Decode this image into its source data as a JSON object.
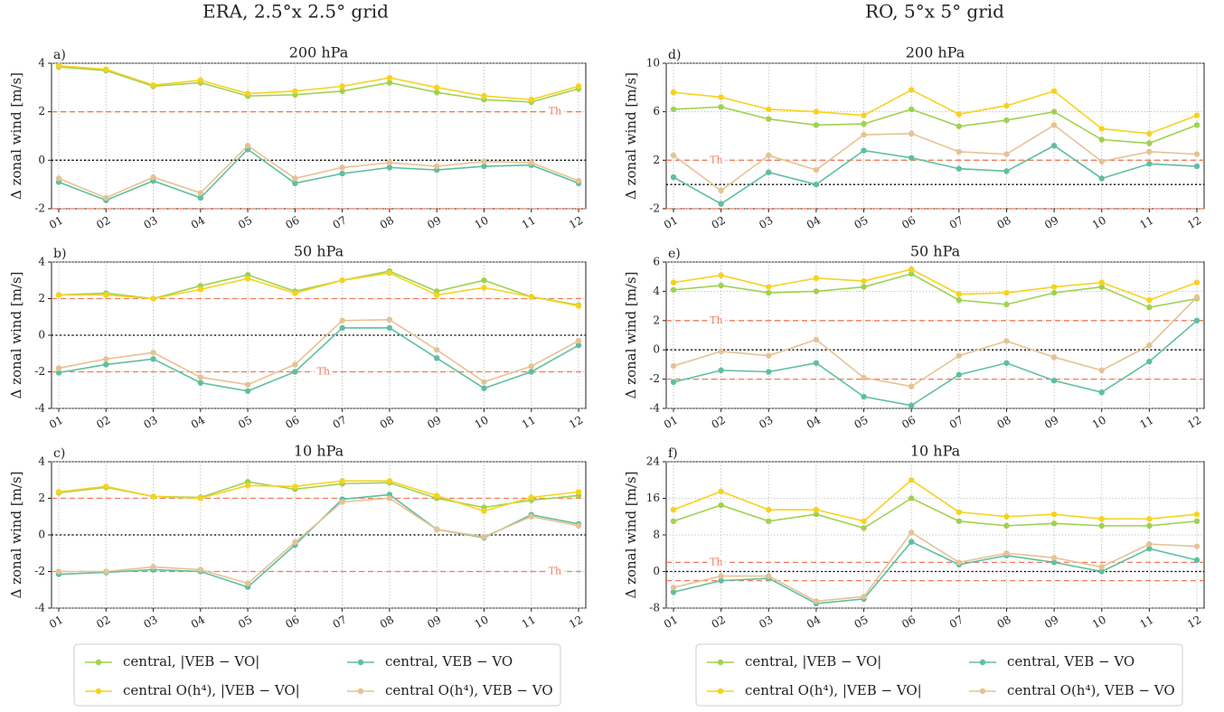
{
  "column_titles": [
    "ERA, 2.5°x 2.5° grid",
    "RO, 5°x 5° grid"
  ],
  "chart_data": [
    {
      "type": "line",
      "panel": "a)",
      "title": "200 hPa",
      "ylabel": "Δ zonal wind [m/s]",
      "categories": [
        "01",
        "02",
        "03",
        "04",
        "05",
        "06",
        "07",
        "08",
        "09",
        "10",
        "11",
        "12"
      ],
      "series": [
        {
          "name": "central, |VEB − VO|",
          "color": "#9fd24f",
          "values": [
            3.85,
            3.7,
            3.05,
            3.2,
            2.65,
            2.7,
            2.85,
            3.2,
            2.8,
            2.5,
            2.4,
            2.95
          ]
        },
        {
          "name": "central O(h⁴), |VEB − VO|",
          "color": "#f7d21e",
          "values": [
            3.9,
            3.75,
            3.1,
            3.3,
            2.75,
            2.85,
            3.05,
            3.4,
            3.0,
            2.65,
            2.5,
            3.05
          ]
        },
        {
          "name": "central, VEB − VO",
          "color": "#5fbf9f",
          "values": [
            -0.9,
            -1.65,
            -0.85,
            -1.55,
            0.45,
            -0.95,
            -0.55,
            -0.3,
            -0.4,
            -0.25,
            -0.2,
            -0.95
          ]
        },
        {
          "name": "central O(h⁴), VEB − VO",
          "color": "#e6c293",
          "values": [
            -0.75,
            -1.55,
            -0.7,
            -1.35,
            0.6,
            -0.75,
            -0.3,
            -0.1,
            -0.25,
            -0.05,
            -0.1,
            -0.85
          ]
        }
      ],
      "ylim": [
        -2,
        4
      ],
      "yticks": [
        -2,
        0,
        2,
        4
      ],
      "threshold": [
        2,
        -2
      ],
      "threshold_label": "Th",
      "grid": true
    },
    {
      "type": "line",
      "panel": "b)",
      "title": "50 hPa",
      "ylabel": "Δ zonal wind [m/s]",
      "categories": [
        "01",
        "02",
        "03",
        "04",
        "05",
        "06",
        "07",
        "08",
        "09",
        "10",
        "11",
        "12"
      ],
      "series": [
        {
          "color": "#9fd24f",
          "values": [
            2.2,
            2.3,
            2.0,
            2.7,
            3.3,
            2.4,
            3.0,
            3.5,
            2.4,
            3.0,
            2.1,
            1.65
          ]
        },
        {
          "color": "#f7d21e",
          "values": [
            2.2,
            2.2,
            2.0,
            2.5,
            3.1,
            2.3,
            3.0,
            3.4,
            2.2,
            2.6,
            2.1,
            1.6
          ]
        },
        {
          "color": "#5fbf9f",
          "values": [
            -2.05,
            -1.6,
            -1.3,
            -2.6,
            -3.05,
            -2.0,
            0.4,
            0.4,
            -1.25,
            -2.9,
            -2.0,
            -0.55
          ]
        },
        {
          "color": "#e6c293",
          "values": [
            -1.8,
            -1.3,
            -0.95,
            -2.3,
            -2.7,
            -1.6,
            0.8,
            0.85,
            -0.8,
            -2.55,
            -1.7,
            -0.3
          ]
        }
      ],
      "ylim": [
        -4,
        4
      ],
      "yticks": [
        -4,
        -2,
        0,
        2,
        4
      ],
      "threshold": [
        2,
        -2
      ],
      "threshold_label": "Th",
      "grid": true
    },
    {
      "type": "line",
      "panel": "c)",
      "title": "10 hPa",
      "ylabel": "Δ zonal wind [m/s]",
      "categories": [
        "01",
        "02",
        "03",
        "04",
        "05",
        "06",
        "07",
        "08",
        "09",
        "10",
        "11",
        "12"
      ],
      "series": [
        {
          "color": "#9fd24f",
          "values": [
            2.3,
            2.6,
            2.1,
            2.05,
            2.9,
            2.5,
            2.8,
            2.85,
            2.0,
            1.5,
            1.9,
            2.15
          ]
        },
        {
          "color": "#f7d21e",
          "values": [
            2.35,
            2.65,
            2.1,
            2.0,
            2.7,
            2.65,
            2.95,
            2.95,
            2.15,
            1.3,
            2.05,
            2.35
          ]
        },
        {
          "color": "#5fbf9f",
          "values": [
            -2.15,
            -2.05,
            -1.9,
            -2.0,
            -2.85,
            -0.55,
            1.95,
            2.2,
            0.3,
            -0.15,
            1.1,
            0.6
          ]
        },
        {
          "color": "#e6c293",
          "values": [
            -2.0,
            -2.0,
            -1.75,
            -1.9,
            -2.65,
            -0.4,
            1.8,
            2.0,
            0.3,
            -0.1,
            1.0,
            0.5
          ]
        }
      ],
      "ylim": [
        -4,
        4
      ],
      "yticks": [
        -4,
        -2,
        0,
        2,
        4
      ],
      "threshold": [
        2,
        -2
      ],
      "threshold_label": "Th",
      "grid": true
    },
    {
      "type": "line",
      "panel": "d)",
      "title": "200 hPa",
      "ylabel": "Δ zonal wind [m/s]",
      "categories": [
        "01",
        "02",
        "03",
        "04",
        "05",
        "06",
        "07",
        "08",
        "09",
        "10",
        "11",
        "12"
      ],
      "series": [
        {
          "name": "central, |VEB − VO|",
          "color": "#9fd24f",
          "values": [
            6.2,
            6.4,
            5.4,
            4.9,
            5.0,
            6.2,
            4.8,
            5.3,
            6.0,
            3.7,
            3.4,
            4.9
          ]
        },
        {
          "name": "central O(h⁴), |VEB − VO|",
          "color": "#f7d21e",
          "values": [
            7.6,
            7.2,
            6.2,
            6.0,
            5.7,
            7.8,
            5.8,
            6.5,
            7.7,
            4.6,
            4.2,
            5.7
          ]
        },
        {
          "name": "central, VEB − VO",
          "color": "#5fbf9f",
          "values": [
            0.6,
            -1.6,
            1.0,
            0.0,
            2.8,
            2.2,
            1.3,
            1.1,
            3.2,
            0.5,
            1.7,
            1.5
          ]
        },
        {
          "name": "central O(h⁴), VEB − VO",
          "color": "#e6c293",
          "values": [
            2.4,
            -0.5,
            2.4,
            1.2,
            4.1,
            4.2,
            2.7,
            2.5,
            4.9,
            1.9,
            2.7,
            2.5
          ]
        }
      ],
      "ylim": [
        -2,
        10
      ],
      "yticks": [
        -2,
        2,
        6,
        10
      ],
      "threshold": [
        2,
        -2
      ],
      "threshold_label": "Th",
      "grid": true
    },
    {
      "type": "line",
      "panel": "e)",
      "title": "50 hPa",
      "ylabel": "Δ zonal wind [m/s]",
      "categories": [
        "01",
        "02",
        "03",
        "04",
        "05",
        "06",
        "07",
        "08",
        "09",
        "10",
        "11",
        "12"
      ],
      "series": [
        {
          "color": "#9fd24f",
          "values": [
            4.1,
            4.4,
            3.9,
            4.0,
            4.3,
            5.2,
            3.4,
            3.1,
            3.9,
            4.3,
            2.9,
            3.5
          ]
        },
        {
          "color": "#f7d21e",
          "values": [
            4.6,
            5.1,
            4.3,
            4.9,
            4.7,
            5.5,
            3.8,
            3.9,
            4.3,
            4.6,
            3.4,
            4.6
          ]
        },
        {
          "color": "#5fbf9f",
          "values": [
            -2.2,
            -1.4,
            -1.5,
            -0.9,
            -3.2,
            -3.8,
            -1.7,
            -0.9,
            -2.1,
            -2.9,
            -0.8,
            2.0
          ]
        },
        {
          "color": "#e6c293",
          "values": [
            -1.1,
            -0.1,
            -0.4,
            0.7,
            -1.9,
            -2.5,
            -0.4,
            0.6,
            -0.5,
            -1.4,
            0.3,
            3.6
          ]
        }
      ],
      "ylim": [
        -4,
        6
      ],
      "yticks": [
        -4,
        -2,
        0,
        2,
        4,
        6
      ],
      "threshold": [
        2,
        -2
      ],
      "threshold_label": "Th",
      "grid": true
    },
    {
      "type": "line",
      "panel": "f)",
      "title": "10 hPa",
      "ylabel": "Δ zonal wind [m/s]",
      "categories": [
        "01",
        "02",
        "03",
        "04",
        "05",
        "06",
        "07",
        "08",
        "09",
        "10",
        "11",
        "12"
      ],
      "series": [
        {
          "color": "#9fd24f",
          "values": [
            11,
            14.5,
            11,
            12.5,
            9.5,
            16,
            11,
            10,
            10.5,
            10,
            10,
            11
          ]
        },
        {
          "color": "#f7d21e",
          "values": [
            13.5,
            17.5,
            13.5,
            13.5,
            11,
            20,
            13,
            12,
            12.5,
            11.5,
            11.5,
            12.5
          ]
        },
        {
          "color": "#5fbf9f",
          "values": [
            -4.5,
            -2,
            -1.5,
            -7,
            -6,
            6.5,
            1.5,
            3.5,
            2,
            0,
            5,
            2.5
          ]
        },
        {
          "color": "#e6c293",
          "values": [
            -3.5,
            -1,
            -1,
            -6.5,
            -5.5,
            8.5,
            2,
            4,
            3,
            1,
            6,
            5.5
          ]
        }
      ],
      "ylim": [
        -8,
        24
      ],
      "yticks": [
        -8,
        0,
        8,
        16,
        24
      ],
      "threshold": [
        2,
        -2
      ],
      "threshold_label": "Th",
      "grid": true
    }
  ]
}
